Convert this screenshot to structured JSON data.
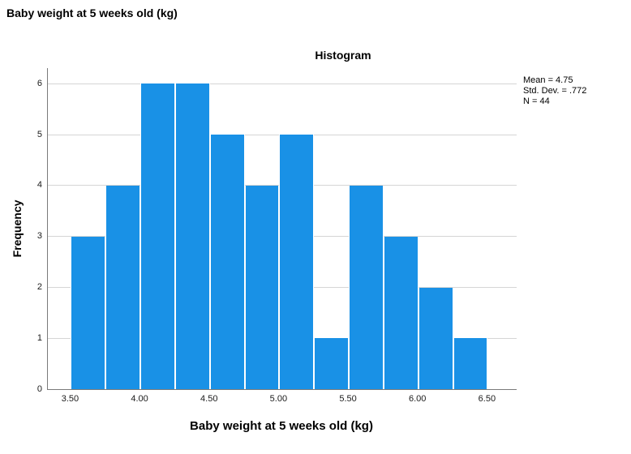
{
  "page": {
    "outer_title": "Baby weight at 5 weeks old (kg)",
    "background": "#FFFFFF"
  },
  "chart_data": {
    "type": "bar",
    "subtype": "histogram",
    "title": "Histogram",
    "xlabel": "Baby weight at 5 weeks old (kg)",
    "ylabel": "Frequency",
    "bin_start": 3.5,
    "bin_width": 0.25,
    "counts": [
      3,
      4,
      6,
      6,
      5,
      4,
      5,
      1,
      4,
      3,
      2,
      1
    ],
    "bin_ranges": [
      "3.50-3.75",
      "3.75-4.00",
      "4.00-4.25",
      "4.25-4.50",
      "4.50-4.75",
      "4.75-5.00",
      "5.00-5.25",
      "5.25-5.50",
      "5.50-5.75",
      "5.75-6.00",
      "6.00-6.25",
      "6.25-6.50"
    ],
    "x_ticks": [
      "3.50",
      "4.00",
      "4.50",
      "5.00",
      "5.50",
      "6.00",
      "6.50"
    ],
    "x_tick_values": [
      3.5,
      4.0,
      4.5,
      5.0,
      5.5,
      6.0,
      6.5
    ],
    "y_ticks": [
      "0",
      "1",
      "2",
      "3",
      "4",
      "5",
      "6"
    ],
    "y_tick_values": [
      0,
      1,
      2,
      3,
      4,
      5,
      6
    ],
    "xlim": [
      3.334,
      6.708
    ],
    "ylim": [
      0,
      6.31
    ],
    "grid": "horizontal-only",
    "legend": "none",
    "bar_color": "#1991E6",
    "gridline_color": "#D5D5D5",
    "axis_color": "#7A7A7A",
    "annotations": {
      "position": "top-right-outside",
      "lines": [
        "Mean = 4.75",
        "Std. Dev. = .772",
        "N = 44"
      ]
    },
    "stats": {
      "mean": 4.75,
      "std_dev": 0.772,
      "n": 44
    }
  }
}
